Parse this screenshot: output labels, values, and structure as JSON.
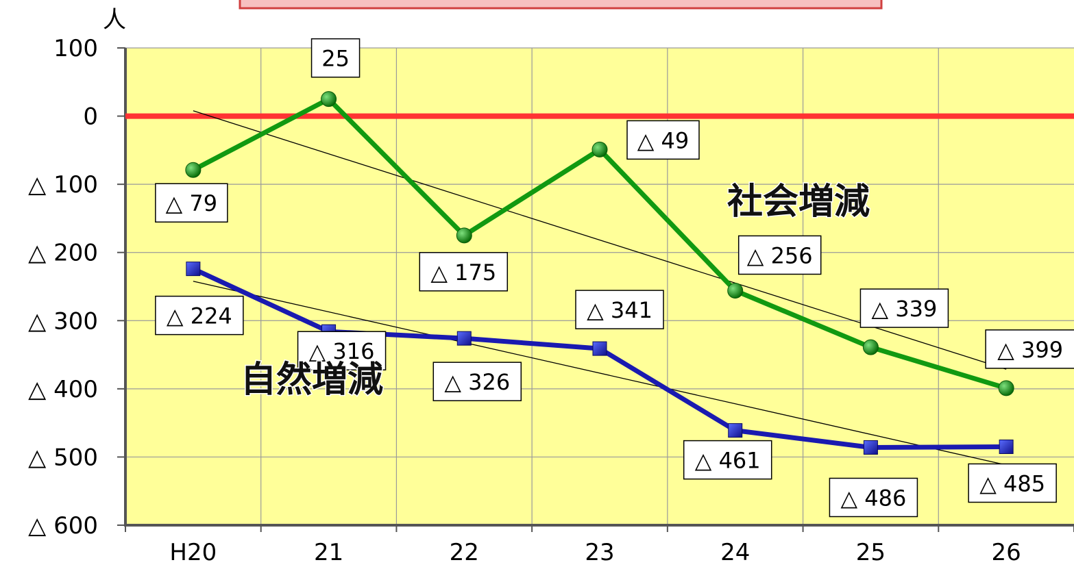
{
  "chart_data": {
    "type": "line",
    "unit_label": "人",
    "categories": [
      "H20",
      "21",
      "22",
      "23",
      "24",
      "25",
      "26"
    ],
    "ylim": [
      -600,
      100
    ],
    "yticks": [
      100,
      0,
      -100,
      -200,
      -300,
      -400,
      -500,
      -600
    ],
    "ytick_labels": [
      "100",
      "0",
      "△ 100",
      "△ 200",
      "△ 300",
      "△ 400",
      "△ 500",
      "△ 600"
    ],
    "grid": true,
    "zero_line_color": "#ff3333",
    "plot_background": "#ffff99",
    "series": [
      {
        "name": "社会増減",
        "color": "#119911",
        "marker": "circle",
        "values": [
          -79,
          25,
          -175,
          -49,
          -256,
          -339,
          -399
        ],
        "labels": [
          "△ 79",
          "25",
          "△ 175",
          "△ 49",
          "△ 256",
          "△ 339",
          "△ 399"
        ],
        "trendline": true
      },
      {
        "name": "自然増減",
        "color": "#1a1ab0",
        "marker": "square",
        "values": [
          -224,
          -316,
          -326,
          -341,
          -461,
          -486,
          -485
        ],
        "labels": [
          "△ 224",
          "△ 316",
          "△ 326",
          "△ 341",
          "△ 461",
          "△ 486",
          "△ 485"
        ],
        "trendline": true
      }
    ]
  }
}
